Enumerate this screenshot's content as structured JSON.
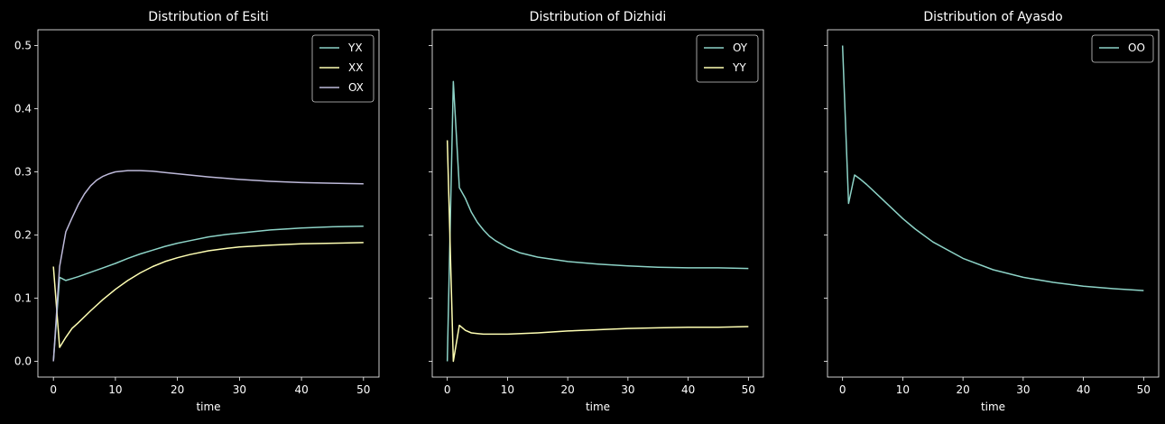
{
  "chart_data": [
    {
      "type": "line",
      "title": "Distribution of Esiti",
      "xlabel": "time",
      "ylabel": "",
      "xlim": [
        -2.5,
        52.5
      ],
      "ylim": [
        -0.025,
        0.525
      ],
      "xticks": [
        0,
        10,
        20,
        30,
        40,
        50
      ],
      "yticks": [
        0.0,
        0.1,
        0.2,
        0.3,
        0.4,
        0.5
      ],
      "ytick_labels": [
        "0.0",
        "0.1",
        "0.2",
        "0.3",
        "0.4",
        "0.5"
      ],
      "show_ytick_labels": true,
      "legend": "top-right",
      "series": [
        {
          "name": "YX",
          "color": "#8dd3c7",
          "x": [
            0,
            1,
            2,
            3,
            4,
            6,
            8,
            10,
            12,
            14,
            16,
            18,
            20,
            22,
            25,
            28,
            30,
            35,
            40,
            45,
            50
          ],
          "y": [
            0.0,
            0.133,
            0.128,
            0.131,
            0.134,
            0.141,
            0.148,
            0.155,
            0.163,
            0.17,
            0.176,
            0.182,
            0.187,
            0.191,
            0.197,
            0.201,
            0.203,
            0.208,
            0.211,
            0.213,
            0.214
          ]
        },
        {
          "name": "XX",
          "color": "#ffffb3",
          "x": [
            0,
            1,
            2,
            3,
            4,
            6,
            8,
            10,
            12,
            14,
            16,
            18,
            20,
            22,
            25,
            28,
            30,
            35,
            40,
            45,
            50
          ],
          "y": [
            0.15,
            0.022,
            0.038,
            0.052,
            0.061,
            0.08,
            0.098,
            0.114,
            0.128,
            0.14,
            0.15,
            0.158,
            0.164,
            0.169,
            0.175,
            0.179,
            0.181,
            0.184,
            0.186,
            0.187,
            0.188
          ]
        },
        {
          "name": "OX",
          "color": "#bebada",
          "x": [
            0,
            1,
            2,
            3,
            4,
            5,
            6,
            7,
            8,
            9,
            10,
            12,
            14,
            16,
            18,
            20,
            25,
            30,
            35,
            40,
            45,
            50
          ],
          "y": [
            0.0,
            0.15,
            0.205,
            0.227,
            0.248,
            0.265,
            0.278,
            0.287,
            0.293,
            0.297,
            0.3,
            0.302,
            0.302,
            0.301,
            0.299,
            0.297,
            0.292,
            0.288,
            0.285,
            0.283,
            0.282,
            0.281
          ]
        }
      ]
    },
    {
      "type": "line",
      "title": "Distribution of Dizhidi",
      "xlabel": "time",
      "ylabel": "",
      "xlim": [
        -2.5,
        52.5
      ],
      "ylim": [
        -0.025,
        0.525
      ],
      "xticks": [
        0,
        10,
        20,
        30,
        40,
        50
      ],
      "yticks": [
        0.0,
        0.1,
        0.2,
        0.3,
        0.4,
        0.5
      ],
      "ytick_labels": [
        "",
        "",
        "",
        "",
        "",
        ""
      ],
      "show_ytick_labels": false,
      "legend": "top-right",
      "series": [
        {
          "name": "OY",
          "color": "#8dd3c7",
          "x": [
            0,
            1,
            2,
            3,
            4,
            5,
            6,
            7,
            8,
            10,
            12,
            15,
            20,
            25,
            30,
            35,
            40,
            45,
            50
          ],
          "y": [
            0.0,
            0.443,
            0.275,
            0.258,
            0.236,
            0.22,
            0.208,
            0.198,
            0.191,
            0.18,
            0.172,
            0.165,
            0.158,
            0.154,
            0.151,
            0.149,
            0.148,
            0.148,
            0.147
          ]
        },
        {
          "name": "YY",
          "color": "#ffffb3",
          "x": [
            0,
            1,
            2,
            3,
            4,
            5,
            6,
            8,
            10,
            15,
            20,
            25,
            30,
            35,
            40,
            45,
            50
          ],
          "y": [
            0.35,
            0.0,
            0.057,
            0.049,
            0.045,
            0.044,
            0.043,
            0.043,
            0.043,
            0.045,
            0.048,
            0.05,
            0.052,
            0.053,
            0.054,
            0.054,
            0.055
          ]
        }
      ]
    },
    {
      "type": "line",
      "title": "Distribution of Ayasdo",
      "xlabel": "time",
      "ylabel": "",
      "xlim": [
        -2.5,
        52.5
      ],
      "ylim": [
        -0.025,
        0.525
      ],
      "xticks": [
        0,
        10,
        20,
        30,
        40,
        50
      ],
      "yticks": [
        0.0,
        0.1,
        0.2,
        0.3,
        0.4,
        0.5
      ],
      "ytick_labels": [
        "",
        "",
        "",
        "",
        "",
        ""
      ],
      "show_ytick_labels": false,
      "legend": "top-right",
      "series": [
        {
          "name": "OO",
          "color": "#8dd3c7",
          "x": [
            0,
            1,
            2,
            3,
            4,
            6,
            8,
            10,
            12,
            15,
            20,
            25,
            30,
            35,
            40,
            45,
            50
          ],
          "y": [
            0.5,
            0.25,
            0.295,
            0.288,
            0.28,
            0.262,
            0.244,
            0.226,
            0.21,
            0.189,
            0.163,
            0.145,
            0.133,
            0.125,
            0.119,
            0.115,
            0.112
          ]
        }
      ]
    }
  ]
}
